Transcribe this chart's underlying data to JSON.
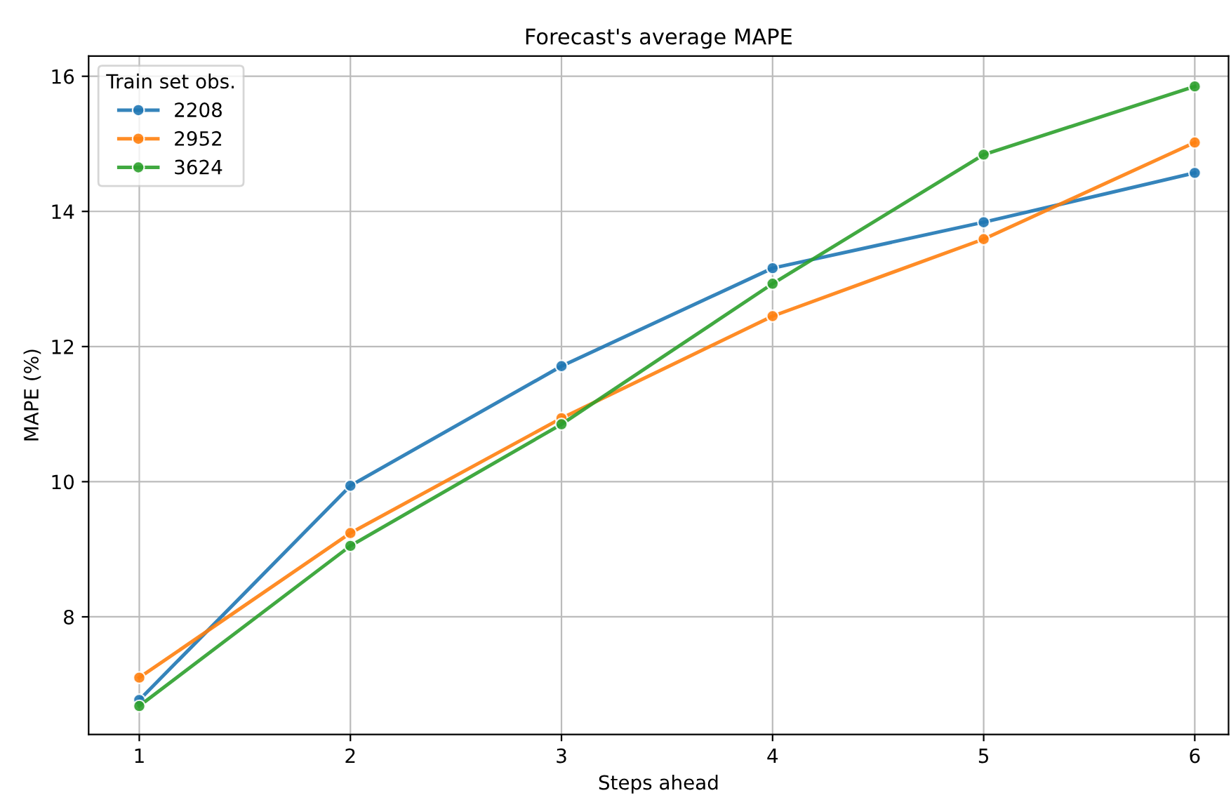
{
  "chart_data": {
    "type": "line",
    "title": "Forecast's average MAPE",
    "xlabel": "Steps ahead",
    "ylabel": "MAPE (%)",
    "legend_title": "Train set obs.",
    "x": [
      1,
      2,
      3,
      4,
      5,
      6
    ],
    "series": [
      {
        "name": "2208",
        "color": "#1f77b4",
        "values": [
          6.77,
          9.94,
          11.71,
          13.16,
          13.84,
          14.57
        ]
      },
      {
        "name": "2952",
        "color": "#ff7f0e",
        "values": [
          7.1,
          9.24,
          10.94,
          12.45,
          13.59,
          15.02
        ]
      },
      {
        "name": "3624",
        "color": "#2ca02c",
        "values": [
          6.68,
          9.05,
          10.85,
          12.93,
          14.84,
          15.85
        ]
      }
    ],
    "xlim": [
      0.76,
      6.16
    ],
    "xticks": [
      1,
      2,
      3,
      4,
      5,
      6
    ],
    "ylim": [
      6.26,
      16.3
    ],
    "yticks": [
      8,
      10,
      12,
      14,
      16
    ],
    "grid": true,
    "legend": "top left",
    "marker": "circle",
    "line_style": "solid"
  }
}
